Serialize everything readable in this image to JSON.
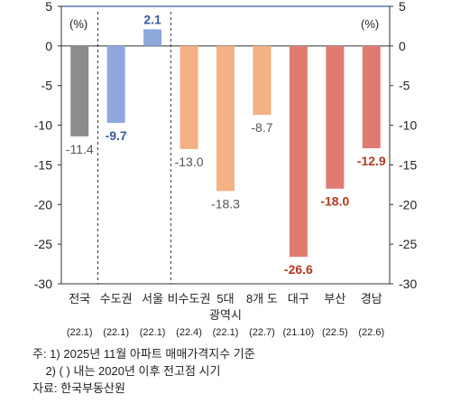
{
  "chart_data": {
    "type": "bar",
    "categories": [
      "전국",
      "수도권",
      "서울",
      "비수도권",
      "5대 광역시",
      "8개 도",
      "대구",
      "부산",
      "경남"
    ],
    "category_lines": [
      [
        "전국"
      ],
      [
        "수도권"
      ],
      [
        "서울"
      ],
      [
        "비수도권"
      ],
      [
        "5대",
        "광역시"
      ],
      [
        "8개 도"
      ],
      [
        "대구"
      ],
      [
        "부산"
      ],
      [
        "경남"
      ]
    ],
    "peak_dates": [
      "(22.1)",
      "(22.1)",
      "(22.1)",
      "(22.4)",
      "(22.1)",
      "(22.7)",
      "(21.10)",
      "(22.5)",
      "(22.6)"
    ],
    "values": [
      -11.4,
      -9.7,
      2.1,
      -13.0,
      -18.3,
      -8.7,
      -26.6,
      -18.0,
      -12.9
    ],
    "value_labels": [
      "-11.4",
      "-9.7",
      "2.1",
      "-13.0",
      "-18.3",
      "-8.7",
      "-26.6",
      "-18.0",
      "-12.9"
    ],
    "bar_colors": [
      "#8c8c8c",
      "#8ea8dc",
      "#8ea8dc",
      "#f4b183",
      "#f4b183",
      "#f4b183",
      "#e07b72",
      "#e07b72",
      "#e07b72"
    ],
    "label_colors": [
      "#555555",
      "#3b5aa0",
      "#3b5aa0",
      "#555555",
      "#555555",
      "#555555",
      "#b33a1f",
      "#b33a1f",
      "#b33a1f"
    ],
    "bold_labels": [
      false,
      true,
      true,
      false,
      false,
      false,
      true,
      true,
      true
    ],
    "unit_left": "(%)",
    "unit_right": "(%)",
    "ylim": [
      -30,
      5
    ],
    "y_ticks": [
      5,
      0,
      -5,
      -10,
      -15,
      -20,
      -25,
      -30
    ],
    "y_tick_labels": [
      "5",
      "0",
      "-5",
      "-10",
      "-15",
      "-20",
      "-25",
      "-30"
    ],
    "group_separators_after": [
      0,
      2
    ],
    "grid": false,
    "accent_color": "#3b5aa0"
  },
  "notes": {
    "line1": "주: 1) 2025년 11월 아파트 매매가격지수 기준",
    "line2": "    2) ( ) 내는 2020년 이후 전고점 시기",
    "line3": "자료: 한국부동산원"
  }
}
